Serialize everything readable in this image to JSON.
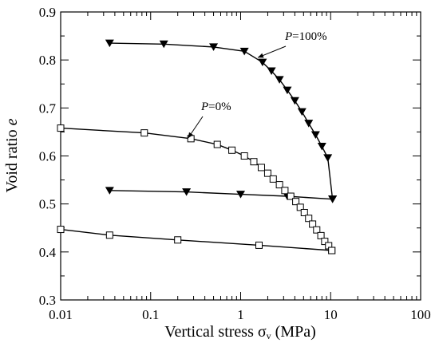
{
  "chart_data": {
    "type": "scatter",
    "x_scale": "log",
    "xlim": [
      0.01,
      100
    ],
    "ylim": [
      0.3,
      0.9
    ],
    "x_ticks": [
      0.01,
      0.1,
      1,
      10,
      100
    ],
    "x_tick_labels": [
      "0.01",
      "0.1",
      "1",
      "10",
      "100"
    ],
    "y_ticks": [
      0.3,
      0.4,
      0.5,
      0.6,
      0.7,
      0.8,
      0.9
    ],
    "y_tick_labels": [
      "0.3",
      "0.4",
      "0.5",
      "0.6",
      "0.7",
      "0.8",
      "0.9"
    ],
    "xlabel": {
      "main": "Vertical stress σ",
      "sub": "v",
      "unit": " (MPa)"
    },
    "ylabel": {
      "main": "Void ratio ",
      "italic": "e"
    },
    "grid": false,
    "legend": "none",
    "series": [
      {
        "marker": "triangle-down",
        "loading": [
          [
            0.035,
            0.835
          ],
          [
            0.14,
            0.833
          ],
          [
            0.5,
            0.827
          ],
          [
            1.1,
            0.818
          ],
          [
            1.75,
            0.795
          ],
          [
            2.2,
            0.777
          ],
          [
            2.7,
            0.759
          ],
          [
            3.3,
            0.737
          ],
          [
            4.0,
            0.715
          ],
          [
            4.8,
            0.692
          ],
          [
            5.7,
            0.668
          ],
          [
            6.8,
            0.644
          ],
          [
            8.0,
            0.62
          ],
          [
            9.3,
            0.596
          ],
          [
            10.5,
            0.51
          ]
        ],
        "unloading": [
          [
            10.5,
            0.51
          ],
          [
            3.3,
            0.516
          ],
          [
            1.0,
            0.52
          ],
          [
            0.25,
            0.525
          ],
          [
            0.035,
            0.528
          ]
        ]
      },
      {
        "marker": "square",
        "loading": [
          [
            0.01,
            0.658
          ],
          [
            0.085,
            0.648
          ],
          [
            0.28,
            0.636
          ],
          [
            0.55,
            0.624
          ],
          [
            0.8,
            0.612
          ],
          [
            1.1,
            0.6
          ],
          [
            1.4,
            0.588
          ],
          [
            1.7,
            0.576
          ],
          [
            2.0,
            0.564
          ],
          [
            2.3,
            0.552
          ],
          [
            2.7,
            0.54
          ],
          [
            3.1,
            0.528
          ],
          [
            3.6,
            0.516
          ],
          [
            4.1,
            0.505
          ],
          [
            4.6,
            0.493
          ],
          [
            5.1,
            0.482
          ],
          [
            5.7,
            0.47
          ],
          [
            6.3,
            0.458
          ],
          [
            7.0,
            0.446
          ],
          [
            7.8,
            0.434
          ],
          [
            8.6,
            0.422
          ],
          [
            9.5,
            0.413
          ],
          [
            10.3,
            0.403
          ]
        ],
        "unloading": [
          [
            10.3,
            0.403
          ],
          [
            1.6,
            0.414
          ],
          [
            0.2,
            0.425
          ],
          [
            0.035,
            0.435
          ],
          [
            0.01,
            0.447
          ]
        ]
      }
    ],
    "annotations": [
      {
        "prefix": "P",
        "text": "=100%",
        "point_to": [
          1.55,
          0.805
        ]
      },
      {
        "prefix": "P",
        "text": "=0%",
        "point_to": [
          0.26,
          0.637
        ]
      }
    ]
  }
}
